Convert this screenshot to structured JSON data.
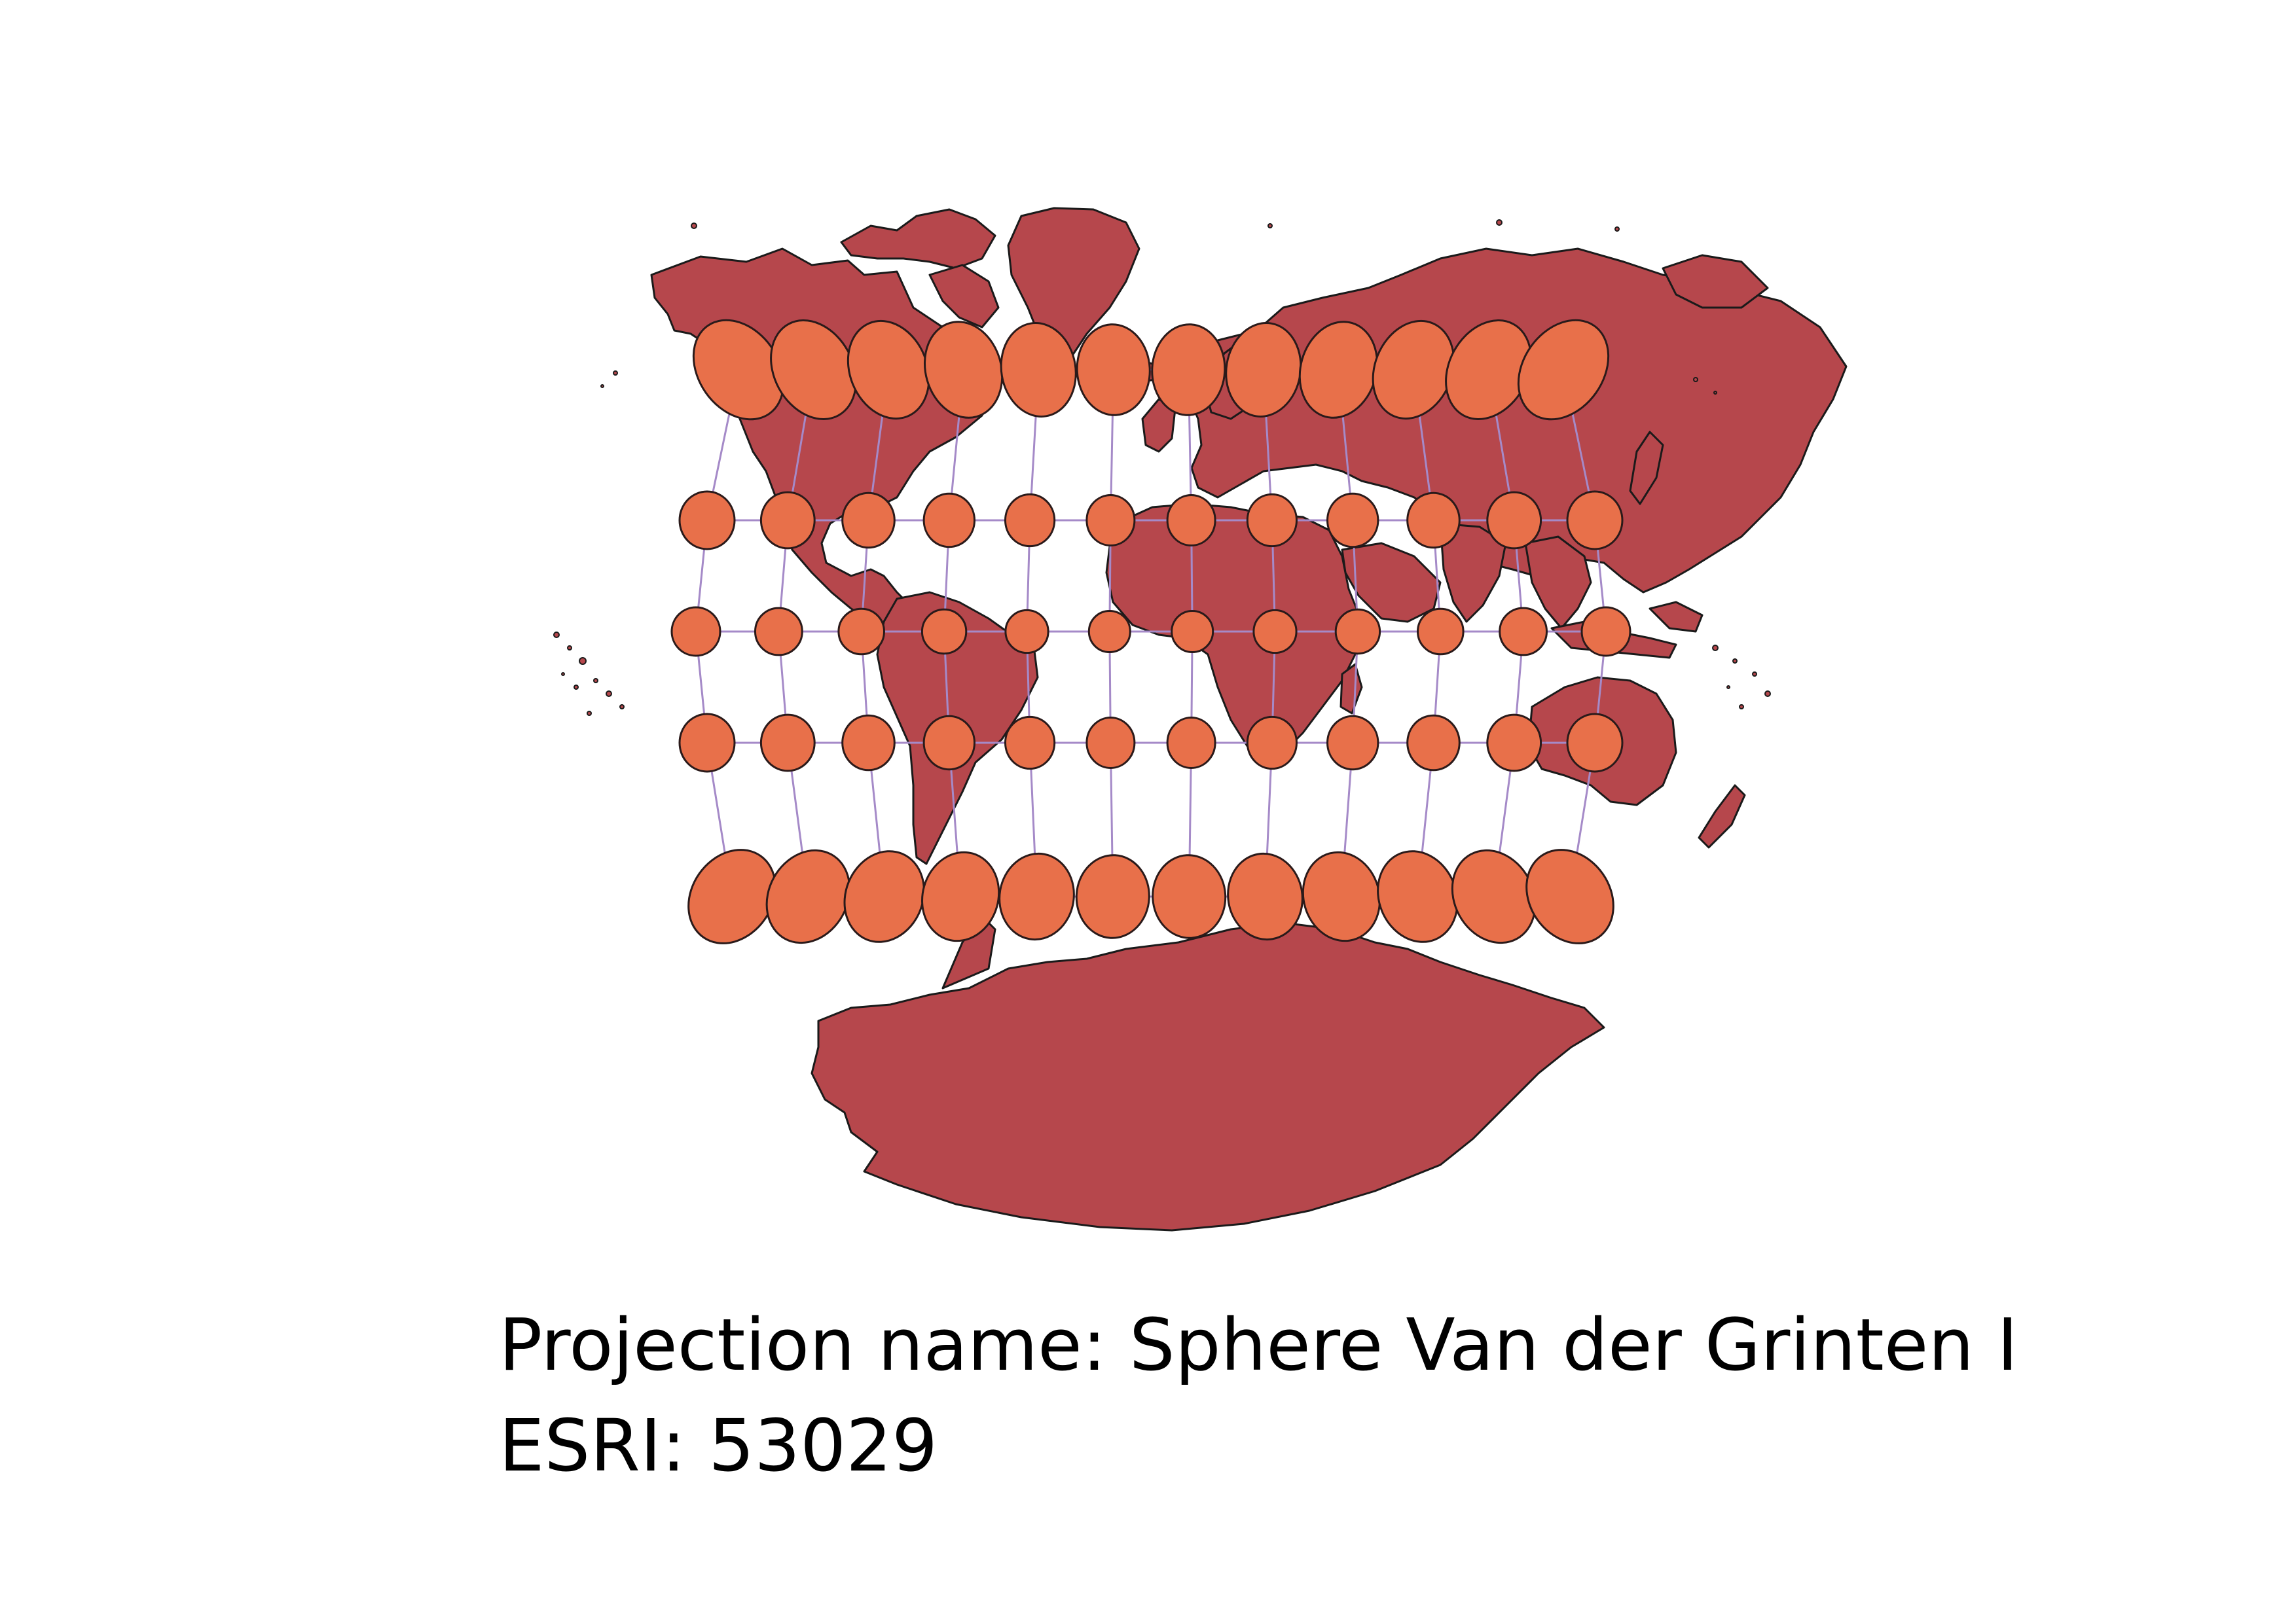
{
  "caption": {
    "projection_line": "Projection name: Sphere Van der Grinten I",
    "code_line": "ESRI: 53029"
  },
  "colors": {
    "background": "#ffffff",
    "land": "#b6474c",
    "land_outline": "#1a1a1a",
    "graticule": "#a58ac8",
    "indicatrix": "#e8704a",
    "indicatrix_outline": "#2a1a1a"
  },
  "map": {
    "graticule_longitudes": [
      -165,
      -135,
      -105,
      -75,
      -45,
      -15,
      15,
      45,
      75,
      105,
      135,
      165
    ],
    "graticule_latitudes": [
      60,
      30,
      0,
      -30,
      -60
    ]
  }
}
